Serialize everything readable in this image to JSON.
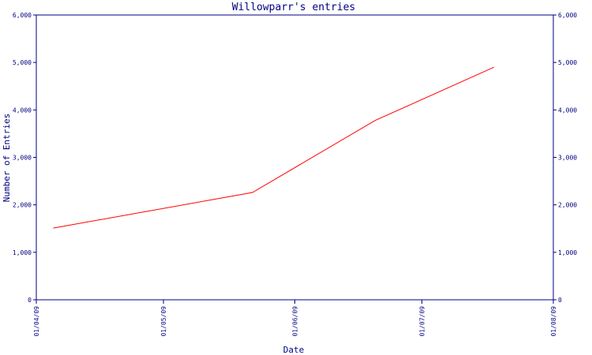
{
  "colors": {
    "axis": "#000080",
    "text": "#000080",
    "series": "#ff0000",
    "background": "#ffffff"
  },
  "chart_data": {
    "type": "line",
    "title": "Willowparr's entries",
    "xlabel": "Date",
    "ylabel": "Number of Entries",
    "x_ticks": [
      "01/04/09",
      "01/05/09",
      "01/06/09",
      "01/07/09",
      "01/08/09"
    ],
    "y_ticks": [
      "0",
      "1,000",
      "2,000",
      "3,000",
      "4,000",
      "5,000",
      "6,000"
    ],
    "ylim": [
      0,
      6000
    ],
    "xlim": [
      "2009-04-01",
      "2009-08-01"
    ],
    "grid": false,
    "series": [
      {
        "points": [
          {
            "x": "2009-04-05",
            "y": 1510
          },
          {
            "x": "2009-05-22",
            "y": 2260
          },
          {
            "x": "2009-06-20",
            "y": 3780
          },
          {
            "x": "2009-07-18",
            "y": 4900
          }
        ]
      }
    ]
  }
}
